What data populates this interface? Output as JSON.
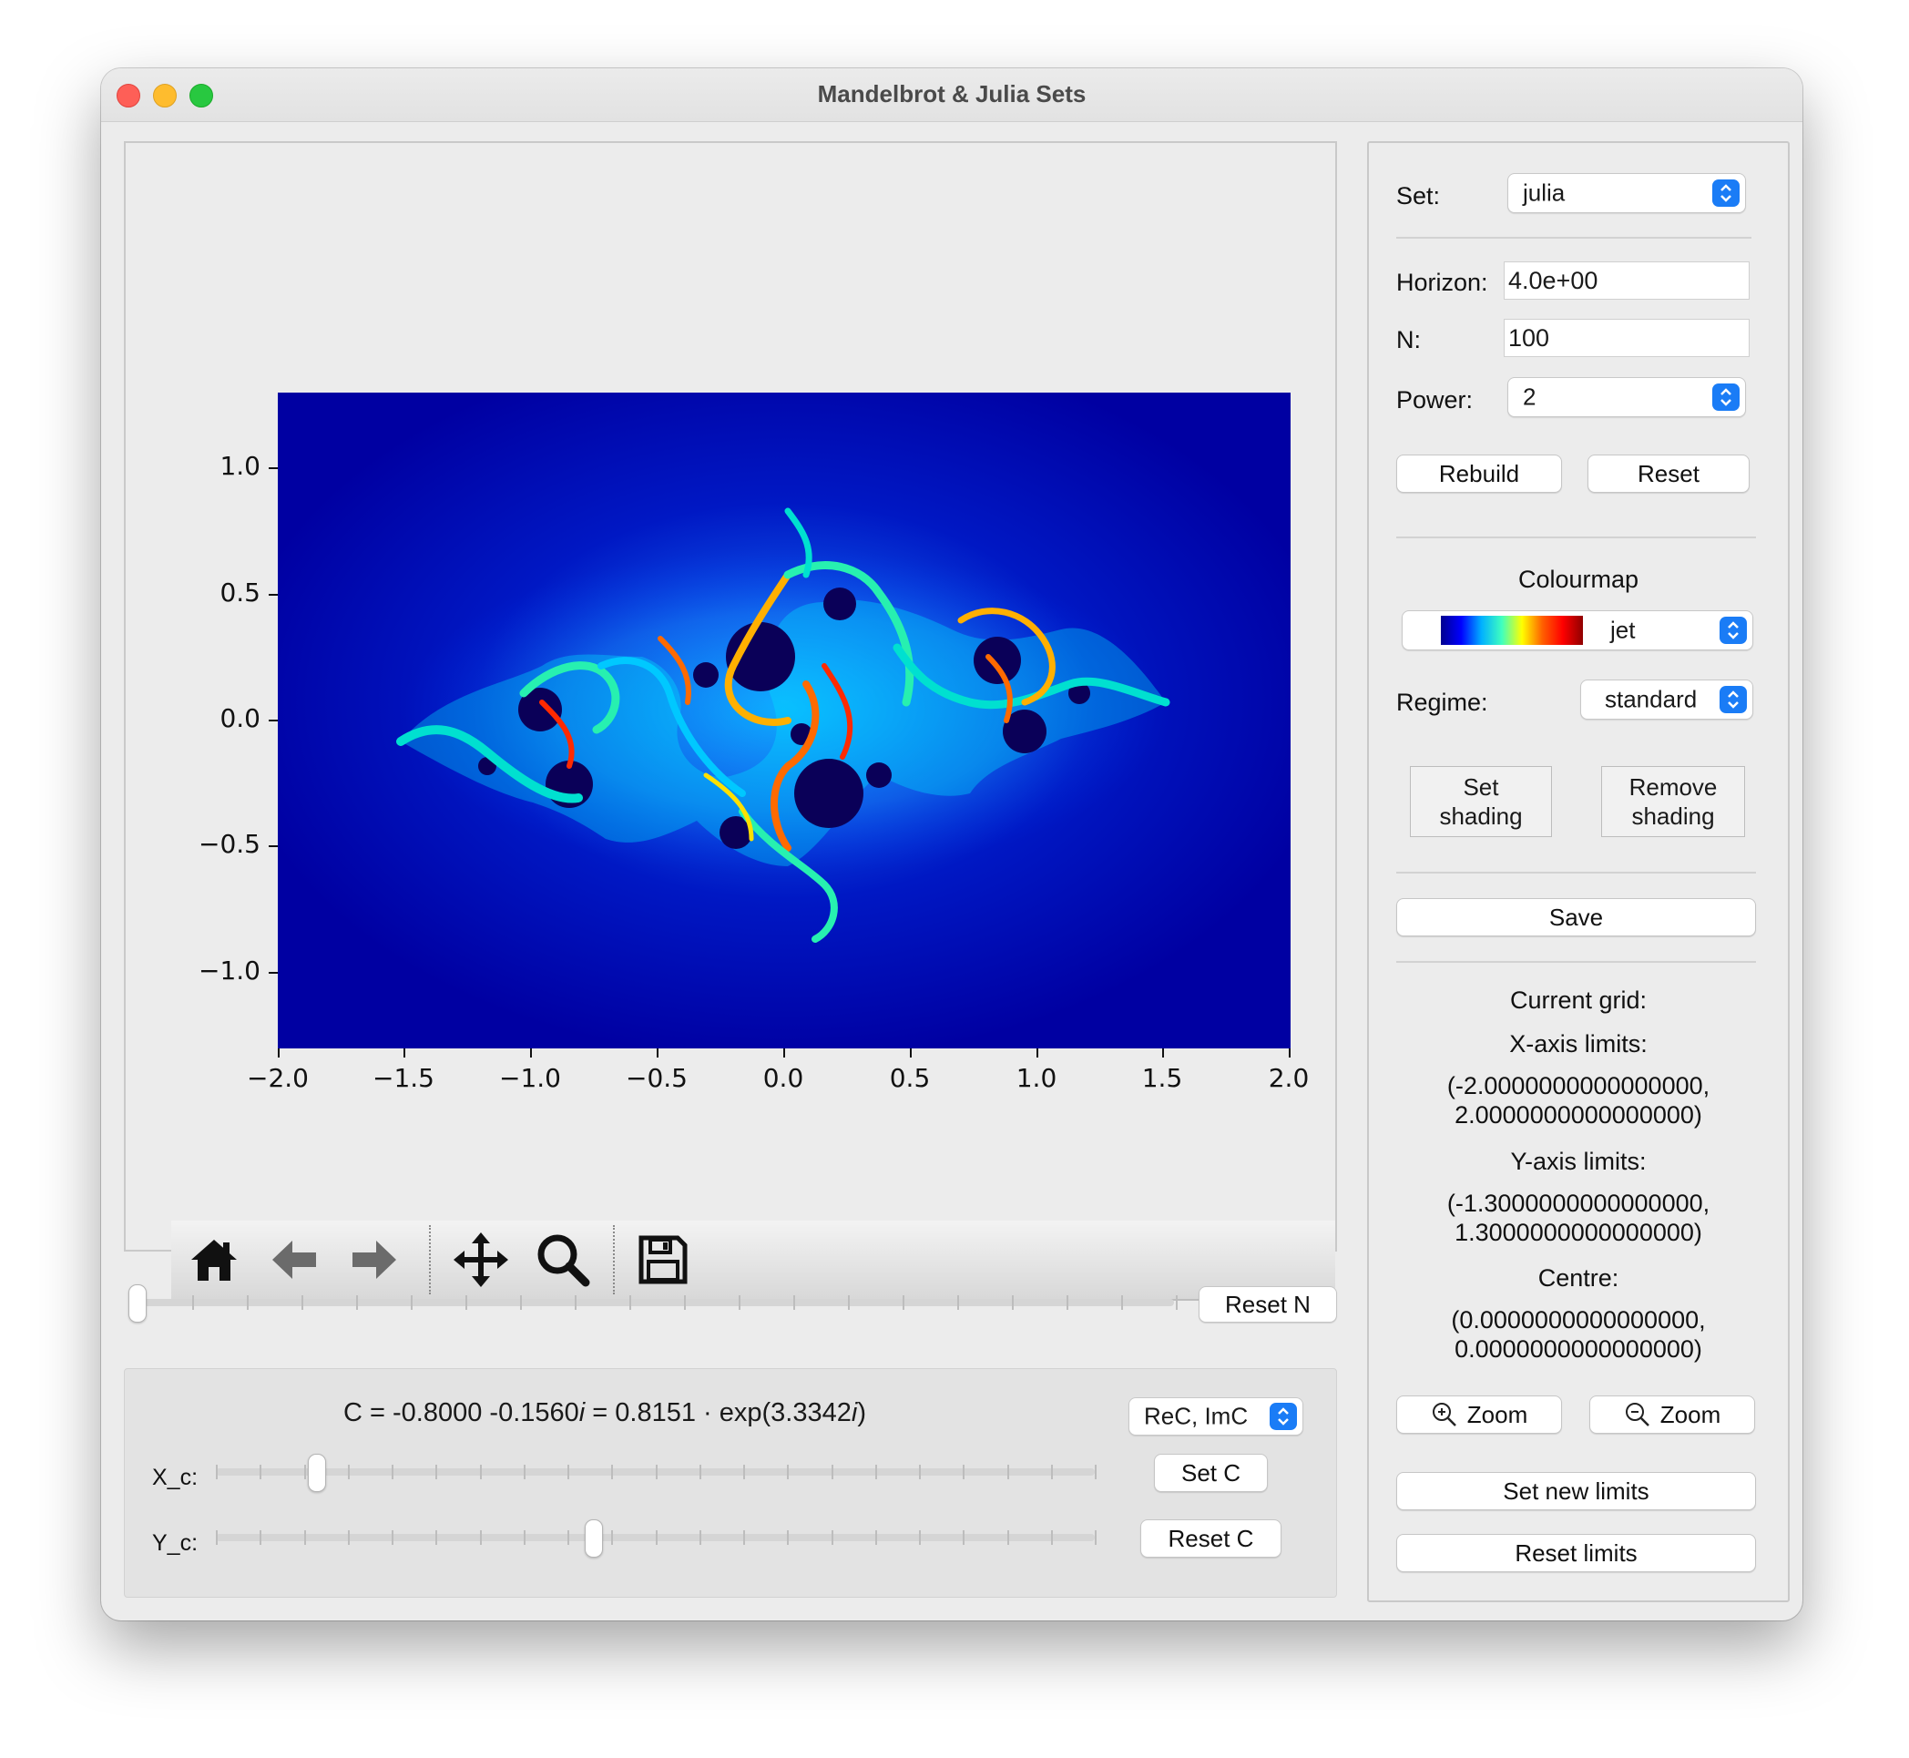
{
  "window": {
    "title": "Mandelbrot & Julia Sets"
  },
  "plot": {
    "x_ticks": [
      "−2.0",
      "−1.5",
      "−1.0",
      "−0.5",
      "0.0",
      "0.5",
      "1.0",
      "1.5",
      "2.0"
    ],
    "y_ticks": [
      "1.0",
      "0.5",
      "0.0",
      "−0.5",
      "−1.0"
    ],
    "xlim": [
      -2.0,
      2.0
    ],
    "ylim": [
      -1.3,
      1.3
    ],
    "background_color": "#0000a2"
  },
  "toolbar": {
    "icons": [
      "home-icon",
      "back-arrow-icon",
      "forward-arrow-icon",
      "pan-icon",
      "zoom-magnifier-icon",
      "save-floppy-icon"
    ]
  },
  "n_slider": {
    "value_fraction": 0.0,
    "reset_label": "Reset N"
  },
  "c_panel": {
    "formula_prefix": "C = -0.8000 -0.1560",
    "formula_i1": "i",
    "formula_mid": " = 0.8151",
    "formula_dot": "·",
    "formula_exp": "exp(3.3342",
    "formula_i2": "i",
    "formula_end": ")",
    "mode_select": "ReC, ImC",
    "xc_label": "X_c:",
    "yc_label": "Y_c:",
    "xc_fraction": 0.105,
    "yc_fraction": 0.42,
    "set_c_label": "Set C",
    "reset_c_label": "Reset C"
  },
  "side": {
    "set_label": "Set:",
    "set_value": "julia",
    "horizon_label": "Horizon:",
    "horizon_value": "4.0e+00",
    "n_label": "N:",
    "n_value": "100",
    "power_label": "Power:",
    "power_value": "2",
    "rebuild_label": "Rebuild",
    "reset_label": "Reset",
    "colourmap_title": "Colourmap",
    "colourmap_value": "jet",
    "regime_label": "Regime:",
    "regime_value": "standard",
    "set_shading_l1": "Set",
    "set_shading_l2": "shading",
    "remove_shading_l1": "Remove",
    "remove_shading_l2": "shading",
    "save_label": "Save",
    "current_grid": "Current grid:",
    "xlim_title": "X-axis limits:",
    "xlim_l1": "(-2.0000000000000000,",
    "xlim_l2": "2.0000000000000000)",
    "ylim_title": "Y-axis limits:",
    "ylim_l1": "(-1.3000000000000000,",
    "ylim_l2": "1.3000000000000000)",
    "centre_title": "Centre:",
    "centre_l1": "(0.0000000000000000,",
    "centre_l2": "0.0000000000000000)",
    "zoom_in_label": "Zoom",
    "zoom_out_label": "Zoom",
    "set_limits_label": "Set new limits",
    "reset_limits_label": "Reset limits"
  }
}
